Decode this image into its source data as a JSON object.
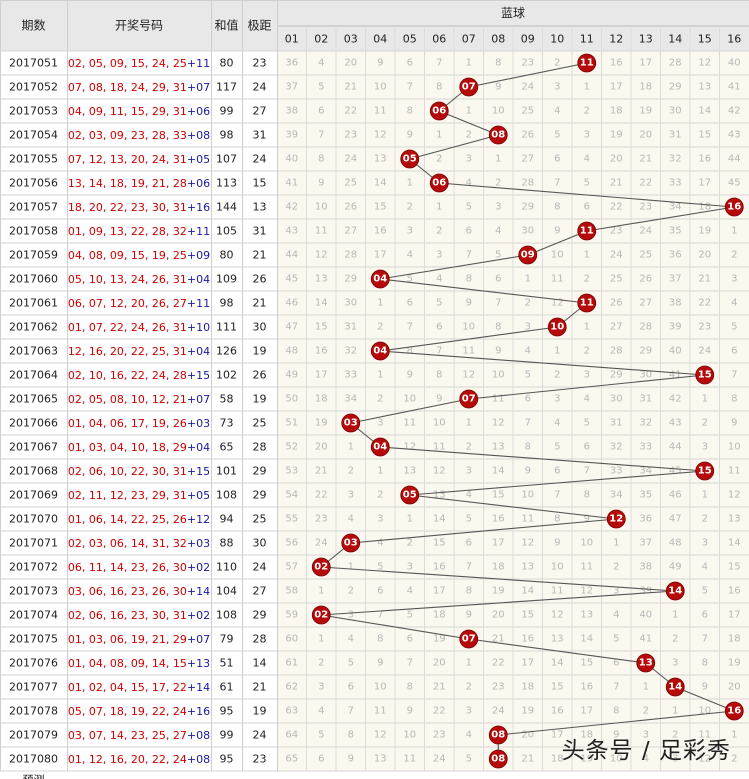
{
  "headers": {
    "period": "期数",
    "draw_numbers": "开奖号码",
    "sum": "和值",
    "span": "极距",
    "blue_ball": "蓝球",
    "blue_columns": [
      "01",
      "02",
      "03",
      "04",
      "05",
      "06",
      "07",
      "08",
      "09",
      "10",
      "11",
      "12",
      "13",
      "14",
      "15",
      "16"
    ]
  },
  "rows": [
    {
      "period": "2017051",
      "reds": "02, 05, 09, 15, 24, 25",
      "blue": "11",
      "sum": 80,
      "span": 23,
      "cells": [
        36,
        4,
        20,
        9,
        6,
        7,
        1,
        8,
        23,
        2,
        null,
        16,
        17,
        28,
        12,
        40
      ]
    },
    {
      "period": "2017052",
      "reds": "07, 08, 18, 24, 29, 31",
      "blue": "07",
      "sum": 117,
      "span": 24,
      "cells": [
        37,
        5,
        21,
        10,
        7,
        8,
        null,
        9,
        24,
        3,
        1,
        17,
        18,
        29,
        13,
        41
      ]
    },
    {
      "period": "2017053",
      "reds": "04, 09, 11, 15, 29, 31",
      "blue": "06",
      "sum": 99,
      "span": 27,
      "cells": [
        38,
        6,
        22,
        11,
        8,
        null,
        1,
        10,
        25,
        4,
        2,
        18,
        19,
        30,
        14,
        42
      ]
    },
    {
      "period": "2017054",
      "reds": "02, 03, 09, 23, 28, 33",
      "blue": "08",
      "sum": 98,
      "span": 31,
      "cells": [
        39,
        7,
        23,
        12,
        9,
        1,
        2,
        null,
        26,
        5,
        3,
        19,
        20,
        31,
        15,
        43
      ]
    },
    {
      "period": "2017055",
      "reds": "07, 12, 13, 20, 24, 31",
      "blue": "05",
      "sum": 107,
      "span": 24,
      "cells": [
        40,
        8,
        24,
        13,
        null,
        2,
        3,
        1,
        27,
        6,
        4,
        20,
        21,
        32,
        16,
        44
      ]
    },
    {
      "period": "2017056",
      "reds": "13, 14, 18, 19, 21, 28",
      "blue": "06",
      "sum": 113,
      "span": 15,
      "cells": [
        41,
        9,
        25,
        14,
        1,
        null,
        4,
        2,
        28,
        7,
        5,
        21,
        22,
        33,
        17,
        45
      ]
    },
    {
      "period": "2017057",
      "reds": "18, 20, 22, 23, 30, 31",
      "blue": "16",
      "sum": 144,
      "span": 13,
      "cells": [
        42,
        10,
        26,
        15,
        2,
        1,
        5,
        3,
        29,
        8,
        6,
        22,
        23,
        34,
        18,
        null
      ]
    },
    {
      "period": "2017058",
      "reds": "01, 09, 13, 22, 28, 32",
      "blue": "11",
      "sum": 105,
      "span": 31,
      "cells": [
        43,
        11,
        27,
        16,
        3,
        2,
        6,
        4,
        30,
        9,
        null,
        23,
        24,
        35,
        19,
        1
      ]
    },
    {
      "period": "2017059",
      "reds": "04, 08, 09, 15, 19, 25",
      "blue": "09",
      "sum": 80,
      "span": 21,
      "cells": [
        44,
        12,
        28,
        17,
        4,
        3,
        7,
        5,
        null,
        10,
        1,
        24,
        25,
        36,
        20,
        2
      ]
    },
    {
      "period": "2017060",
      "reds": "05, 10, 13, 24, 26, 31",
      "blue": "04",
      "sum": 109,
      "span": 26,
      "cells": [
        45,
        13,
        29,
        null,
        5,
        4,
        8,
        6,
        1,
        11,
        2,
        25,
        26,
        37,
        21,
        3
      ]
    },
    {
      "period": "2017061",
      "reds": "06, 07, 12, 20, 26, 27",
      "blue": "11",
      "sum": 98,
      "span": 21,
      "cells": [
        46,
        14,
        30,
        1,
        6,
        5,
        9,
        7,
        2,
        12,
        null,
        26,
        27,
        38,
        22,
        4
      ]
    },
    {
      "period": "2017062",
      "reds": "01, 07, 22, 24, 26, 31",
      "blue": "10",
      "sum": 111,
      "span": 30,
      "cells": [
        47,
        15,
        31,
        2,
        7,
        6,
        10,
        8,
        3,
        null,
        1,
        27,
        28,
        39,
        23,
        5
      ]
    },
    {
      "period": "2017063",
      "reds": "12, 16, 20, 22, 25, 31",
      "blue": "04",
      "sum": 126,
      "span": 19,
      "cells": [
        48,
        16,
        32,
        null,
        8,
        7,
        11,
        9,
        4,
        1,
        2,
        28,
        29,
        40,
        24,
        6
      ]
    },
    {
      "period": "2017064",
      "reds": "02, 10, 16, 22, 24, 28",
      "blue": "15",
      "sum": 102,
      "span": 26,
      "cells": [
        49,
        17,
        33,
        1,
        9,
        8,
        12,
        10,
        5,
        2,
        3,
        29,
        30,
        41,
        null,
        7
      ]
    },
    {
      "period": "2017065",
      "reds": "02, 05, 08, 10, 12, 21",
      "blue": "07",
      "sum": 58,
      "span": 19,
      "cells": [
        50,
        18,
        34,
        2,
        10,
        9,
        null,
        11,
        6,
        3,
        4,
        30,
        31,
        42,
        1,
        8
      ]
    },
    {
      "period": "2017066",
      "reds": "01, 04, 06, 17, 19, 26",
      "blue": "03",
      "sum": 73,
      "span": 25,
      "cells": [
        51,
        19,
        null,
        3,
        11,
        10,
        1,
        12,
        7,
        4,
        5,
        31,
        32,
        43,
        2,
        9
      ]
    },
    {
      "period": "2017067",
      "reds": "01, 03, 04, 10, 18, 29",
      "blue": "04",
      "sum": 65,
      "span": 28,
      "cells": [
        52,
        20,
        1,
        null,
        12,
        11,
        2,
        13,
        8,
        5,
        6,
        32,
        33,
        44,
        3,
        10
      ]
    },
    {
      "period": "2017068",
      "reds": "02, 06, 10, 22, 30, 31",
      "blue": "15",
      "sum": 101,
      "span": 29,
      "cells": [
        53,
        21,
        2,
        1,
        13,
        12,
        3,
        14,
        9,
        6,
        7,
        33,
        34,
        45,
        null,
        11
      ]
    },
    {
      "period": "2017069",
      "reds": "02, 11, 12, 23, 29, 31",
      "blue": "05",
      "sum": 108,
      "span": 29,
      "cells": [
        54,
        22,
        3,
        2,
        null,
        13,
        4,
        15,
        10,
        7,
        8,
        34,
        35,
        46,
        1,
        12
      ]
    },
    {
      "period": "2017070",
      "reds": "01, 06, 14, 22, 25, 26",
      "blue": "12",
      "sum": 94,
      "span": 25,
      "cells": [
        55,
        23,
        4,
        3,
        1,
        14,
        5,
        16,
        11,
        8,
        9,
        null,
        36,
        47,
        2,
        13
      ]
    },
    {
      "period": "2017071",
      "reds": "02, 03, 06, 14, 31, 32",
      "blue": "03",
      "sum": 88,
      "span": 30,
      "cells": [
        56,
        24,
        null,
        4,
        2,
        15,
        6,
        17,
        12,
        9,
        10,
        1,
        37,
        48,
        3,
        14
      ]
    },
    {
      "period": "2017072",
      "reds": "06, 11, 14, 23, 26, 30",
      "blue": "02",
      "sum": 110,
      "span": 24,
      "cells": [
        57,
        null,
        1,
        5,
        3,
        16,
        7,
        18,
        13,
        10,
        11,
        2,
        38,
        49,
        4,
        15
      ]
    },
    {
      "period": "2017073",
      "reds": "03, 06, 16, 23, 26, 30",
      "blue": "14",
      "sum": 104,
      "span": 27,
      "cells": [
        58,
        1,
        2,
        6,
        4,
        17,
        8,
        19,
        14,
        11,
        12,
        3,
        39,
        null,
        5,
        16
      ]
    },
    {
      "period": "2017074",
      "reds": "02, 06, 16, 23, 30, 31",
      "blue": "02",
      "sum": 108,
      "span": 29,
      "cells": [
        59,
        null,
        3,
        7,
        5,
        18,
        9,
        20,
        15,
        12,
        13,
        4,
        40,
        1,
        6,
        17
      ]
    },
    {
      "period": "2017075",
      "reds": "01, 03, 06, 19, 21, 29",
      "blue": "07",
      "sum": 79,
      "span": 28,
      "cells": [
        60,
        1,
        4,
        8,
        6,
        19,
        null,
        21,
        16,
        13,
        14,
        5,
        41,
        2,
        7,
        18
      ]
    },
    {
      "period": "2017076",
      "reds": "01, 04, 08, 09, 14, 15",
      "blue": "13",
      "sum": 51,
      "span": 14,
      "cells": [
        61,
        2,
        5,
        9,
        7,
        20,
        1,
        22,
        17,
        14,
        15,
        6,
        null,
        3,
        8,
        19
      ]
    },
    {
      "period": "2017077",
      "reds": "01, 02, 04, 15, 17, 22",
      "blue": "14",
      "sum": 61,
      "span": 21,
      "cells": [
        62,
        3,
        6,
        10,
        8,
        21,
        2,
        23,
        18,
        15,
        16,
        7,
        1,
        null,
        9,
        20
      ]
    },
    {
      "period": "2017078",
      "reds": "05, 07, 18, 19, 22, 24",
      "blue": "16",
      "sum": 95,
      "span": 19,
      "cells": [
        63,
        4,
        7,
        11,
        9,
        22,
        3,
        24,
        19,
        16,
        17,
        8,
        2,
        1,
        10,
        null
      ]
    },
    {
      "period": "2017079",
      "reds": "03, 07, 14, 23, 25, 27",
      "blue": "08",
      "sum": 99,
      "span": 24,
      "cells": [
        64,
        5,
        8,
        12,
        10,
        23,
        4,
        null,
        20,
        17,
        18,
        9,
        3,
        2,
        11,
        1
      ]
    },
    {
      "period": "2017080",
      "reds": "01, 12, 16, 20, 22, 24",
      "blue": "08",
      "sum": 95,
      "span": 23,
      "cells": [
        65,
        6,
        9,
        13,
        11,
        24,
        5,
        null,
        21,
        18,
        19,
        10,
        4,
        3,
        12,
        2
      ]
    }
  ],
  "partial_row_label": "预测",
  "watermark": "头条号 / 足彩秀",
  "colors": {
    "grid_bg_header": "#e8e8e8",
    "grid_bg": "#faf8ef",
    "red_text": "#d00000",
    "blue_text": "#1a1aa0",
    "ball": "#b40a0a",
    "missing_text": "#b8b8b8",
    "line": "#555555"
  }
}
